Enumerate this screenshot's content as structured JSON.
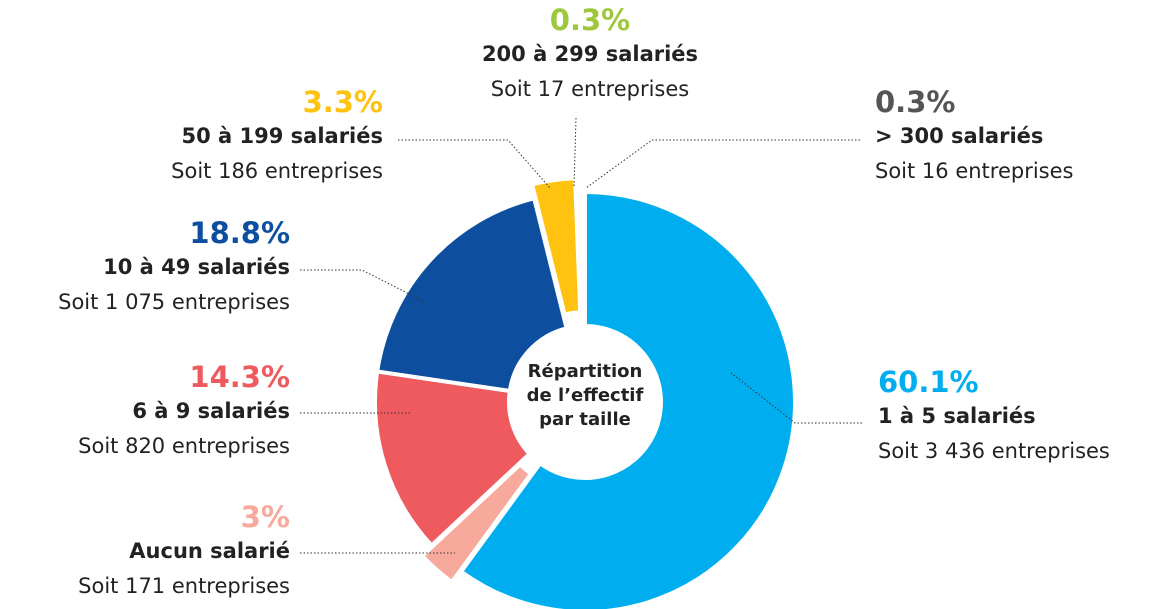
{
  "chart_data": {
    "type": "donut",
    "title": "Répartition de l’effectif par taille",
    "categories": [
      "1 à 5 salariés",
      "Aucun salarié",
      "6 à 9 salariés",
      "10 à 49 salariés",
      "50 à 199 salariés",
      "200 à 299 salariés",
      "> 300 salariés"
    ],
    "values": [
      60.1,
      3,
      14.3,
      18.8,
      3.3,
      0.3,
      0.3
    ],
    "value_labels": [
      "60.1%",
      "3%",
      "14.3%",
      "18.8%",
      "3.3%",
      "0.3%",
      "0.3%"
    ],
    "sublabels": [
      "Soit 3 436 entreprises",
      "Soit 171 entreprises",
      "Soit 820 entreprises",
      "Soit 1 075 entreprises",
      "Soit 186 entreprises",
      "Soit 17 entreprises",
      "Soit 16 entreprises"
    ],
    "colors": [
      "#00aeef",
      "#f7a99c",
      "#ef5a5f",
      "#0d4f9e",
      "#ffc20e",
      "#9dc83c",
      "#555555"
    ]
  }
}
